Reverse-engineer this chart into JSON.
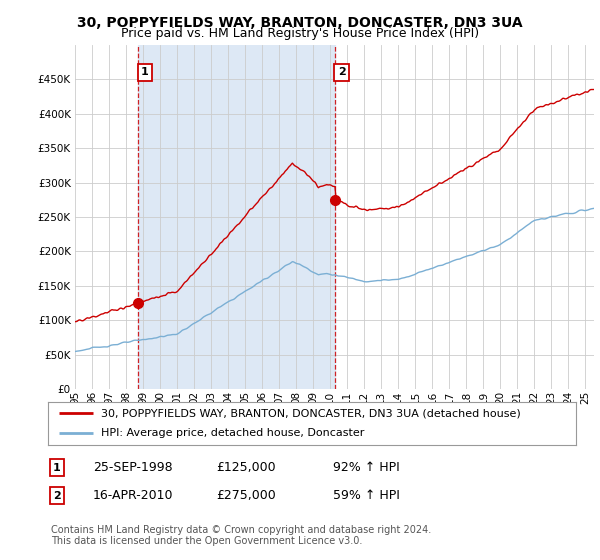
{
  "title": "30, POPPYFIELDS WAY, BRANTON, DONCASTER, DN3 3UA",
  "subtitle": "Price paid vs. HM Land Registry's House Price Index (HPI)",
  "ylim": [
    0,
    500000
  ],
  "yticks": [
    0,
    50000,
    100000,
    150000,
    200000,
    250000,
    300000,
    350000,
    400000,
    450000,
    500000
  ],
  "xlim_start": 1995.0,
  "xlim_end": 2025.5,
  "transaction1_x": 1998.73,
  "transaction1_y": 125000,
  "transaction2_x": 2010.29,
  "transaction2_y": 275000,
  "red_line_color": "#cc0000",
  "blue_line_color": "#7bafd4",
  "vline_color": "#cc0000",
  "grid_color": "#cccccc",
  "shade_color": "#dde8f5",
  "background_color": "#ffffff",
  "legend_label_red": "30, POPPYFIELDS WAY, BRANTON, DONCASTER, DN3 3UA (detached house)",
  "legend_label_blue": "HPI: Average price, detached house, Doncaster",
  "annotation1_date": "25-SEP-1998",
  "annotation1_price": "£125,000",
  "annotation1_hpi": "92% ↑ HPI",
  "annotation2_date": "16-APR-2010",
  "annotation2_price": "£275,000",
  "annotation2_hpi": "59% ↑ HPI",
  "footnote": "Contains HM Land Registry data © Crown copyright and database right 2024.\nThis data is licensed under the Open Government Licence v3.0.",
  "title_fontsize": 10,
  "subtitle_fontsize": 9,
  "tick_fontsize": 7.5,
  "legend_fontsize": 8,
  "annotation_fontsize": 9
}
